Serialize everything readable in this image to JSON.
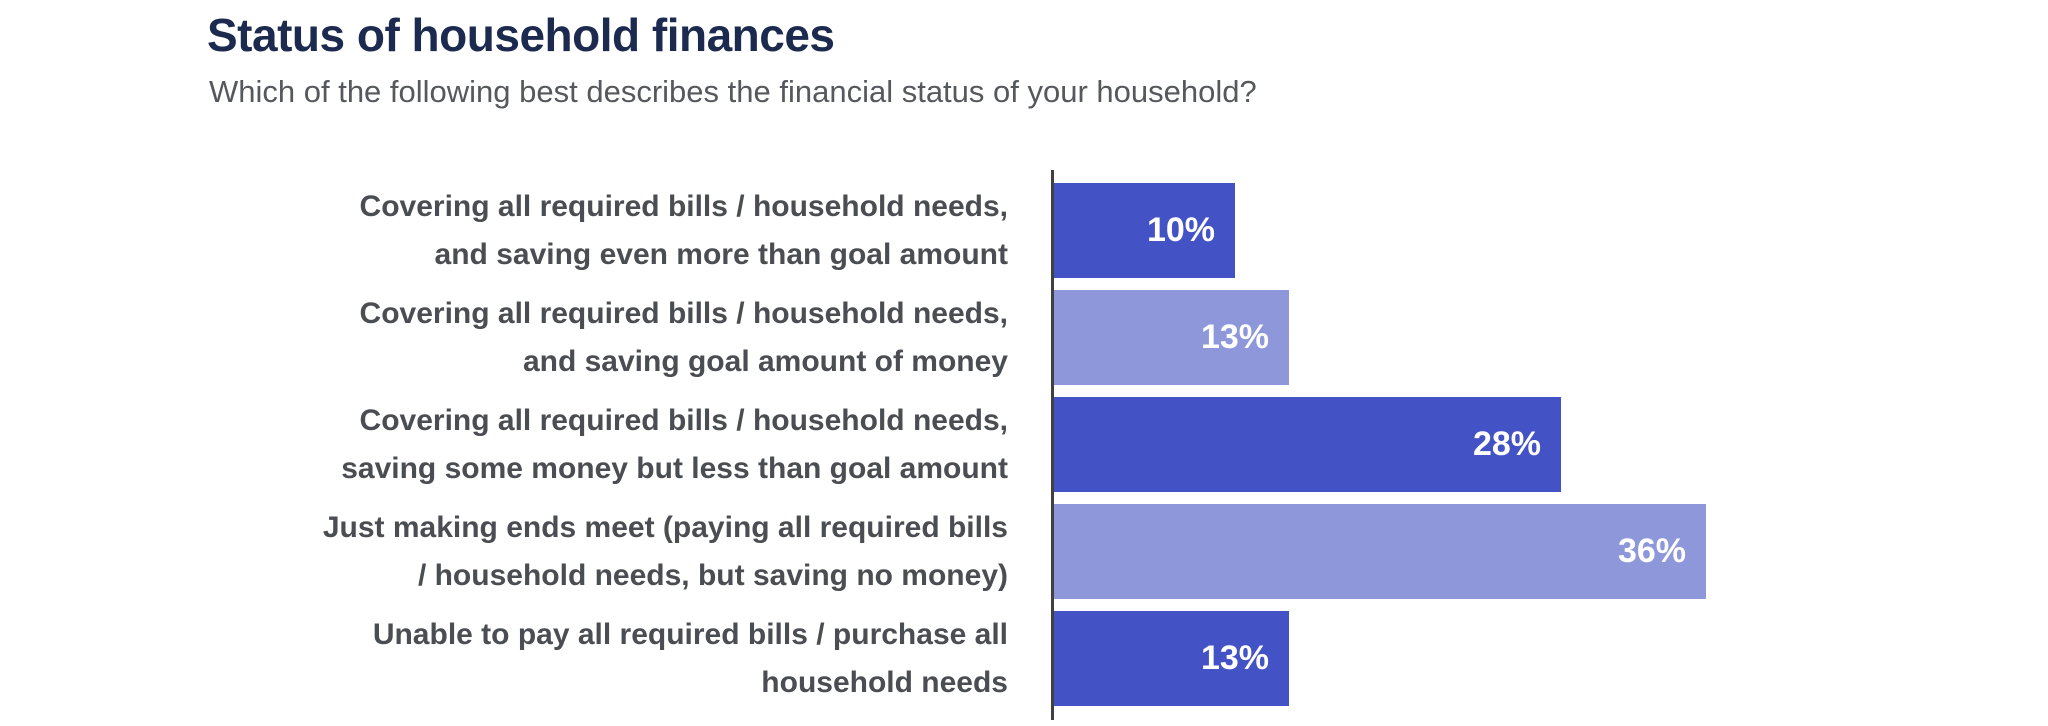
{
  "chart_data": {
    "type": "bar",
    "orientation": "horizontal",
    "title": "Status of household finances",
    "subtitle": "Which of the following best describes the financial status of your household?",
    "unit": "%",
    "xlim": [
      0,
      36
    ],
    "grid": false,
    "legend": false,
    "value_label_position": "inside-end",
    "categories": [
      "Covering all required bills / household needs, and saving even more than goal amount",
      "Covering all required bills / household needs, and saving goal amount of money",
      "Covering all required bills / household needs, saving some money but less than goal amount",
      "Just making ends meet (paying all required bills / household needs, but saving no money)",
      "Unable to pay all required bills / purchase all household needs"
    ],
    "values": [
      10,
      13,
      28,
      36,
      13
    ],
    "rows": [
      {
        "label_lines": [
          "Covering all required bills / household needs,",
          "and saving even more than goal amount"
        ],
        "value": 10,
        "value_label": "10%",
        "color": "#4352c4"
      },
      {
        "label_lines": [
          "Covering all required bills / household needs,",
          "and saving goal amount of money"
        ],
        "value": 13,
        "value_label": "13%",
        "color": "#8d97da"
      },
      {
        "label_lines": [
          "Covering all required bills / household needs,",
          "saving some money but less than goal amount"
        ],
        "value": 28,
        "value_label": "28%",
        "color": "#4352c4"
      },
      {
        "label_lines": [
          "Just making ends meet (paying all required bills",
          "/ household needs, but saving no money)"
        ],
        "value": 36,
        "value_label": "36%",
        "color": "#8d97da"
      },
      {
        "label_lines": [
          "Unable to pay all required bills / purchase all",
          "household needs"
        ],
        "value": 13,
        "value_label": "13%",
        "color": "#4352c4"
      }
    ],
    "colors": {
      "dark_bar": "#4352c4",
      "light_bar": "#8d97da",
      "title_text": "#1b2a4e",
      "subtitle_text": "#55585c",
      "category_text": "#4a4d52",
      "value_text": "#ffffff",
      "axis_line": "#404040",
      "background": "#ffffff"
    }
  }
}
